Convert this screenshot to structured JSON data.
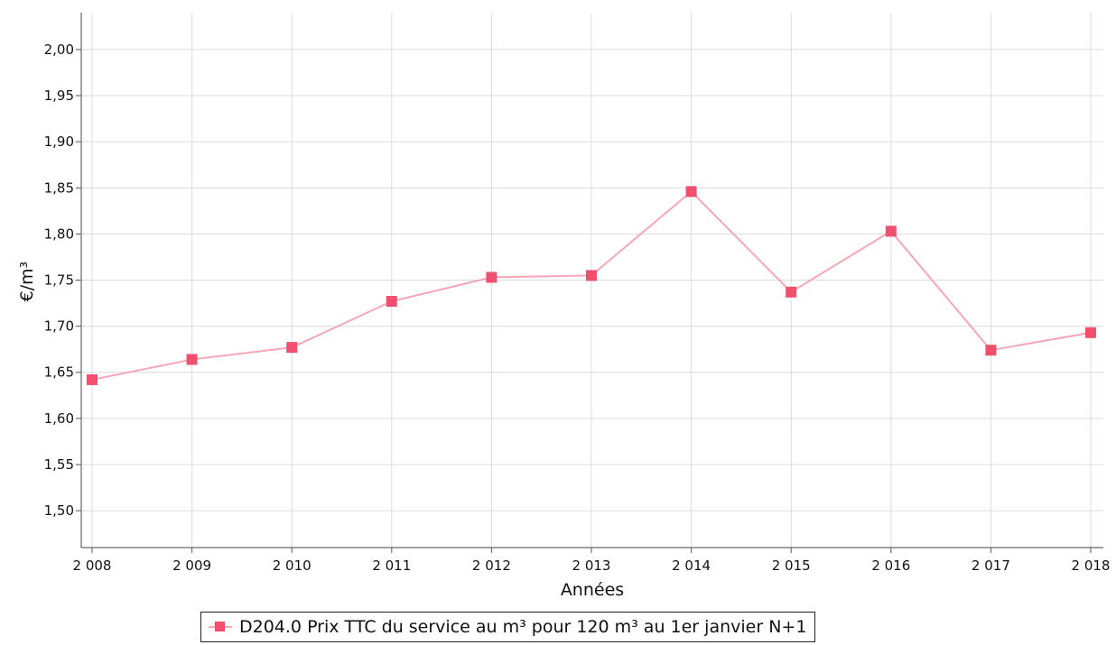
{
  "chart_data": {
    "type": "line",
    "xlabel": "Années",
    "ylabel": "€/m³",
    "categories": [
      "2 008",
      "2 009",
      "2 010",
      "2 011",
      "2 012",
      "2 013",
      "2 014",
      "2 015",
      "2 016",
      "2 017",
      "2 018"
    ],
    "ylim": [
      1.46,
      2.04
    ],
    "yticks": [
      "1,50",
      "1,55",
      "1,60",
      "1,65",
      "1,70",
      "1,75",
      "1,80",
      "1,85",
      "1,90",
      "1,95",
      "2,00"
    ],
    "ytick_values": [
      1.5,
      1.55,
      1.6,
      1.65,
      1.7,
      1.75,
      1.8,
      1.85,
      1.9,
      1.95,
      2.0
    ],
    "grid": true,
    "legend_position": "bottom",
    "series": [
      {
        "name": "D204.0 Prix TTC du service au m³ pour 120 m³ au 1er janvier N+1",
        "values": [
          1.642,
          1.664,
          1.677,
          1.727,
          1.753,
          1.755,
          1.846,
          1.737,
          1.803,
          1.674,
          1.693
        ],
        "line_color": "#f7a6b5",
        "marker_color": "#f0506e"
      }
    ]
  }
}
